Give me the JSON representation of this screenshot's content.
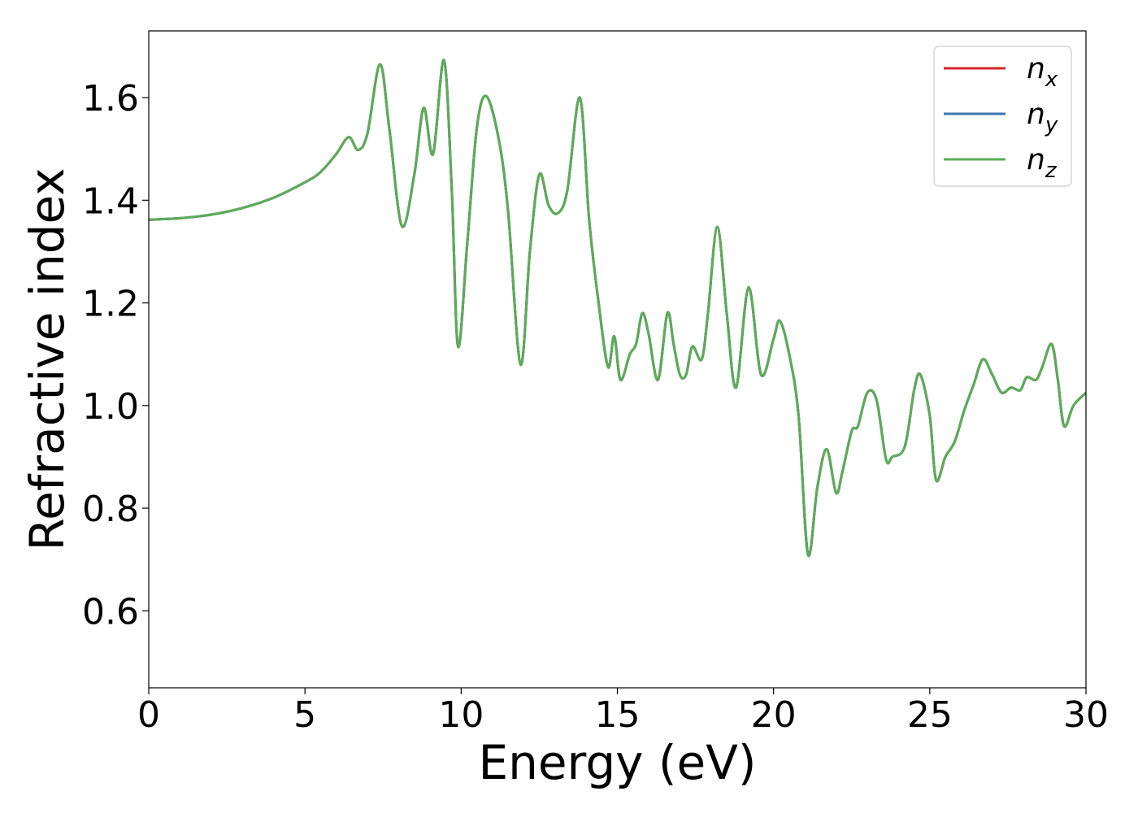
{
  "chart_data": {
    "type": "line",
    "title": "",
    "xlabel": "Energy (eV)",
    "ylabel": "Refractive index",
    "xlim": [
      0,
      30
    ],
    "ylim": [
      0.45,
      1.73
    ],
    "xticks": [
      0,
      5,
      10,
      15,
      20,
      25,
      30
    ],
    "xtick_labels": [
      "0",
      "5",
      "10",
      "15",
      "20",
      "25",
      "30"
    ],
    "yticks": [
      0.6,
      0.8,
      1.0,
      1.2,
      1.4,
      1.6
    ],
    "ytick_labels": [
      "0.6",
      "0.8",
      "1.0",
      "1.2",
      "1.4",
      "1.6"
    ],
    "grid": false,
    "legend_position": "top-right",
    "x": [
      0,
      1,
      2,
      3,
      4,
      5,
      5.5,
      6,
      6.4,
      6.7,
      7,
      7.4,
      7.7,
      8.1,
      8.5,
      8.8,
      9.1,
      9.45,
      9.7,
      9.9,
      10.2,
      10.5,
      10.8,
      11.2,
      11.5,
      11.9,
      12.2,
      12.5,
      12.8,
      13.1,
      13.4,
      13.8,
      14.1,
      14.4,
      14.7,
      14.9,
      15.1,
      15.4,
      15.6,
      15.8,
      16.0,
      16.3,
      16.6,
      16.8,
      17.0,
      17.2,
      17.4,
      17.7,
      17.9,
      18.2,
      18.5,
      18.8,
      19.2,
      19.6,
      20.0,
      20.2,
      20.5,
      20.8,
      21.1,
      21.4,
      21.7,
      22.0,
      22.2,
      22.5,
      22.7,
      23.0,
      23.3,
      23.6,
      23.8,
      24.2,
      24.5,
      24.7,
      25.0,
      25.2,
      25.5,
      25.8,
      26.1,
      26.4,
      26.7,
      27.0,
      27.3,
      27.6,
      27.9,
      28.1,
      28.4,
      28.6,
      28.9,
      29.1,
      29.3,
      29.6,
      30.0
    ],
    "series": [
      {
        "name": "n_x",
        "color": "#d62728",
        "values": [
          1.362,
          1.365,
          1.372,
          1.385,
          1.405,
          1.435,
          1.455,
          1.49,
          1.523,
          1.498,
          1.53,
          1.665,
          1.54,
          1.35,
          1.45,
          1.58,
          1.49,
          1.673,
          1.42,
          1.115,
          1.32,
          1.54,
          1.603,
          1.52,
          1.38,
          1.08,
          1.3,
          1.45,
          1.39,
          1.375,
          1.42,
          1.6,
          1.36,
          1.2,
          1.075,
          1.135,
          1.05,
          1.1,
          1.12,
          1.18,
          1.14,
          1.05,
          1.18,
          1.12,
          1.06,
          1.06,
          1.115,
          1.09,
          1.18,
          1.348,
          1.18,
          1.035,
          1.23,
          1.06,
          1.13,
          1.165,
          1.1,
          0.98,
          0.71,
          0.84,
          0.915,
          0.83,
          0.87,
          0.95,
          0.96,
          1.025,
          1.01,
          0.895,
          0.9,
          0.92,
          1.03,
          1.06,
          0.98,
          0.855,
          0.9,
          0.93,
          0.99,
          1.04,
          1.09,
          1.06,
          1.025,
          1.035,
          1.03,
          1.055,
          1.05,
          1.075,
          1.12,
          1.05,
          0.96,
          1.0,
          1.025
        ]
      },
      {
        "name": "n_y",
        "color": "#3b75af",
        "values": [
          1.362,
          1.365,
          1.372,
          1.385,
          1.405,
          1.435,
          1.455,
          1.49,
          1.523,
          1.498,
          1.53,
          1.665,
          1.54,
          1.35,
          1.45,
          1.58,
          1.49,
          1.673,
          1.42,
          1.115,
          1.32,
          1.54,
          1.603,
          1.52,
          1.38,
          1.08,
          1.3,
          1.45,
          1.39,
          1.375,
          1.42,
          1.6,
          1.36,
          1.2,
          1.075,
          1.135,
          1.05,
          1.1,
          1.12,
          1.18,
          1.14,
          1.05,
          1.18,
          1.12,
          1.06,
          1.06,
          1.115,
          1.09,
          1.18,
          1.348,
          1.18,
          1.035,
          1.23,
          1.06,
          1.13,
          1.165,
          1.1,
          0.98,
          0.71,
          0.84,
          0.915,
          0.83,
          0.87,
          0.95,
          0.96,
          1.025,
          1.01,
          0.895,
          0.9,
          0.92,
          1.03,
          1.06,
          0.98,
          0.855,
          0.9,
          0.93,
          0.99,
          1.04,
          1.09,
          1.06,
          1.025,
          1.035,
          1.03,
          1.055,
          1.05,
          1.075,
          1.12,
          1.05,
          0.96,
          1.0,
          1.025
        ]
      },
      {
        "name": "n_z",
        "color": "#5aad56",
        "values": [
          1.362,
          1.365,
          1.372,
          1.385,
          1.405,
          1.435,
          1.455,
          1.49,
          1.523,
          1.498,
          1.53,
          1.665,
          1.54,
          1.35,
          1.45,
          1.58,
          1.49,
          1.673,
          1.42,
          1.115,
          1.32,
          1.54,
          1.603,
          1.52,
          1.38,
          1.08,
          1.3,
          1.45,
          1.39,
          1.375,
          1.42,
          1.6,
          1.36,
          1.2,
          1.075,
          1.135,
          1.05,
          1.1,
          1.12,
          1.18,
          1.14,
          1.05,
          1.18,
          1.12,
          1.06,
          1.06,
          1.115,
          1.09,
          1.18,
          1.348,
          1.18,
          1.035,
          1.23,
          1.06,
          1.13,
          1.165,
          1.1,
          0.98,
          0.71,
          0.84,
          0.915,
          0.83,
          0.87,
          0.95,
          0.96,
          1.025,
          1.01,
          0.895,
          0.9,
          0.92,
          1.03,
          1.06,
          0.98,
          0.855,
          0.9,
          0.93,
          0.99,
          1.04,
          1.09,
          1.06,
          1.025,
          1.035,
          1.03,
          1.055,
          1.05,
          1.075,
          1.12,
          1.05,
          0.96,
          1.0,
          1.025
        ]
      }
    ],
    "legend": [
      {
        "base": "n",
        "sub": "x"
      },
      {
        "base": "n",
        "sub": "y"
      },
      {
        "base": "n",
        "sub": "z"
      }
    ]
  }
}
